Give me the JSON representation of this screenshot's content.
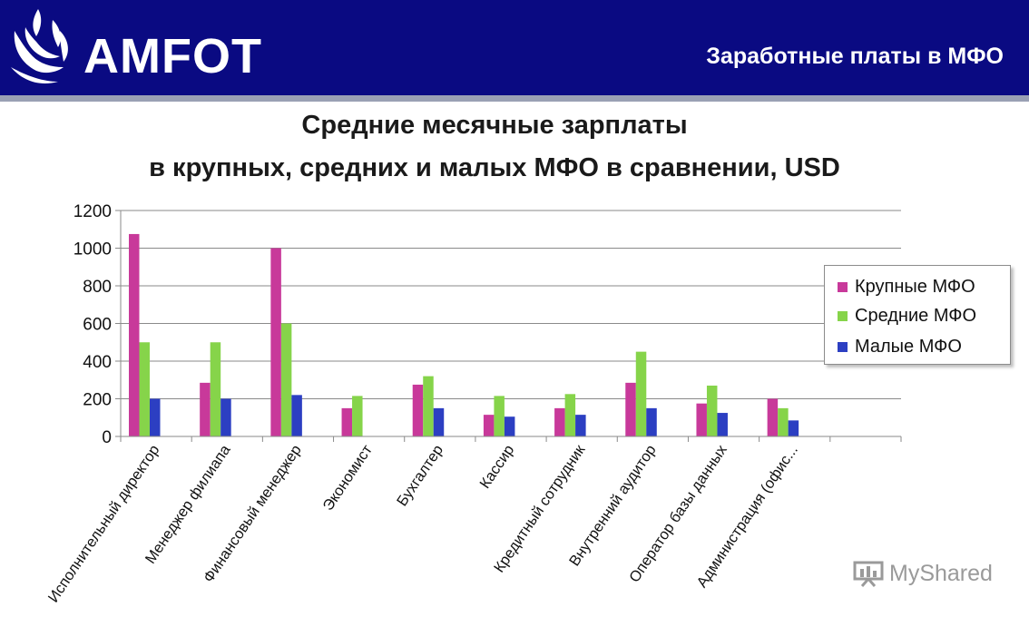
{
  "header": {
    "logo_text": "AMFOT",
    "title": "Заработные платы в МФО"
  },
  "chart_title": {
    "line1": "Средние месячные зарплаты",
    "line2": "в крупных, средних и малых МФО в сравнении, USD"
  },
  "watermark": "MyShared",
  "colors": {
    "header_bg": "#0a0a82",
    "series": [
      "#c8399a",
      "#86d44a",
      "#2c3fc2"
    ]
  },
  "chart_data": {
    "type": "bar",
    "title": "Средние месячные зарплаты в крупных, средних и малых МФО в сравнении, USD",
    "categories": [
      "Исполнительный директор",
      "Менеджер филиапа",
      "Финансовый менеджер",
      "Экономист",
      "Бухгалтер",
      "Кассир",
      "Кредитный сотрудник",
      "Внутренний аудитор",
      "Оператор базы данных",
      "Администрация (офис..."
    ],
    "series": [
      {
        "name": "Крупные МФО",
        "values": [
          1075,
          285,
          1000,
          150,
          275,
          115,
          150,
          285,
          175,
          200
        ]
      },
      {
        "name": "Средние МФО",
        "values": [
          500,
          500,
          600,
          215,
          320,
          215,
          225,
          450,
          270,
          150
        ]
      },
      {
        "name": "Малые МФО",
        "values": [
          200,
          200,
          220,
          0,
          150,
          105,
          115,
          150,
          125,
          85
        ]
      }
    ],
    "y_ticks": [
      "0",
      "200",
      "400",
      "600",
      "800",
      "1000",
      "1200"
    ],
    "ylim": [
      0,
      1200
    ],
    "grid": true,
    "legend_position": "right"
  }
}
